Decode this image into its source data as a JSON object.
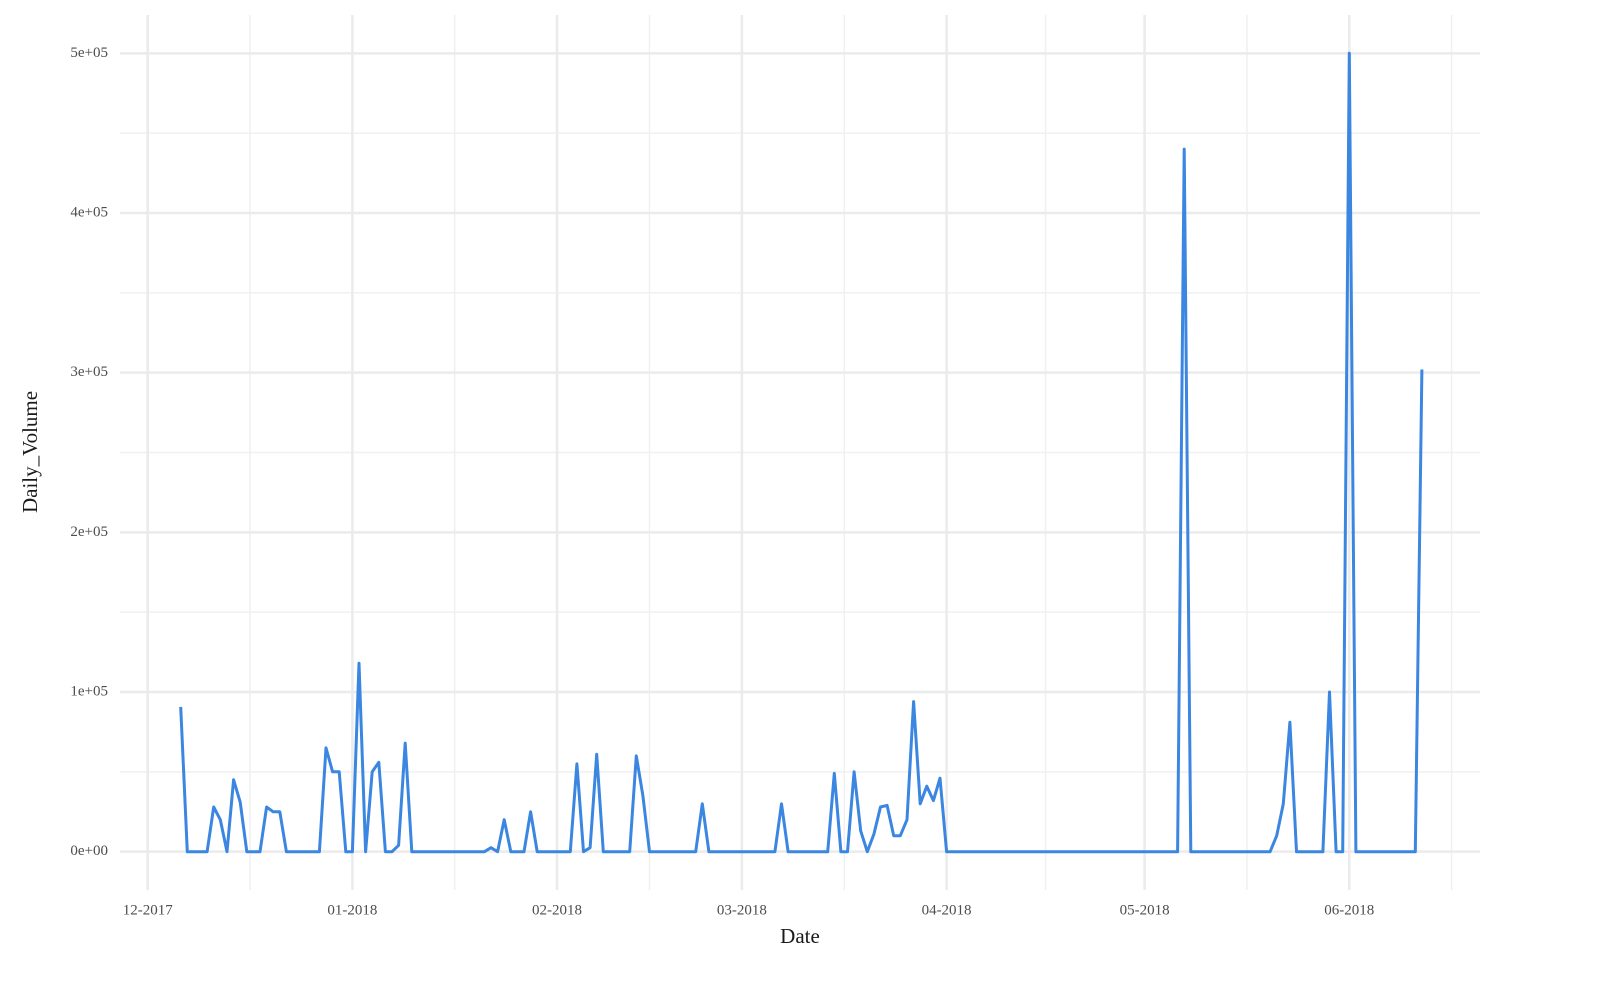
{
  "chart_data": {
    "type": "line",
    "x_label": "Date",
    "y_label": "Daily_Volume",
    "color": "#3a86e0",
    "grid": true,
    "xlim": [
      -4.2,
      201.8
    ],
    "xticks": [
      {
        "value": 0,
        "label": "12-2017"
      },
      {
        "value": 31,
        "label": "01-2018"
      },
      {
        "value": 62,
        "label": "02-2018"
      },
      {
        "value": 90,
        "label": "03-2018"
      },
      {
        "value": 121,
        "label": "04-2018"
      },
      {
        "value": 151,
        "label": "05-2018"
      },
      {
        "value": 182,
        "label": "06-2018"
      }
    ],
    "xminorticks": [
      15.5,
      46.5,
      76,
      105.5,
      136,
      166.5,
      197.5
    ],
    "ylim": [
      -24000,
      524000
    ],
    "yticks": [
      {
        "value": 0,
        "label": "0e+00"
      },
      {
        "value": 100000,
        "label": "1e+05"
      },
      {
        "value": 200000,
        "label": "2e+05"
      },
      {
        "value": 300000,
        "label": "3e+05"
      },
      {
        "value": 400000,
        "label": "4e+05"
      },
      {
        "value": 500000,
        "label": "5e+05"
      }
    ],
    "yminorticks": [
      50000,
      150000,
      250000,
      350000,
      450000
    ],
    "series": [
      {
        "name": "Daily_Volume",
        "color": "#3a86e0",
        "x": [
          5,
          6,
          9,
          10,
          11,
          12,
          13,
          14,
          15,
          17,
          18,
          19,
          20,
          21,
          26,
          27,
          28,
          29,
          30,
          31,
          32,
          33,
          34,
          35,
          36,
          37,
          38,
          39,
          40,
          51,
          52,
          53,
          54,
          55,
          57,
          58,
          59,
          64,
          65,
          66,
          67,
          68,
          69,
          73,
          74,
          75,
          76,
          83,
          84,
          85,
          95,
          96,
          97,
          103,
          104,
          105,
          106,
          107,
          108,
          109,
          110,
          111,
          112,
          113,
          114,
          115,
          116,
          117,
          118,
          119,
          120,
          121,
          156,
          157,
          158,
          170,
          171,
          172,
          173,
          174,
          178,
          179,
          180,
          181,
          182,
          183,
          192,
          193
        ],
        "values": [
          90700,
          0,
          0,
          28000,
          20000,
          0,
          45000,
          31000,
          0,
          0,
          28000,
          25000,
          25000,
          0,
          0,
          65000,
          50000,
          50000,
          0,
          0,
          118000,
          0,
          50000,
          56000,
          0,
          0,
          4000,
          68000,
          0,
          0,
          2500,
          0,
          20000,
          0,
          0,
          25000,
          0,
          0,
          55000,
          0,
          2500,
          61000,
          0,
          0,
          60000,
          35000,
          0,
          0,
          30000,
          0,
          0,
          30000,
          0,
          0,
          49000,
          0,
          0,
          50000,
          13000,
          0,
          11000,
          28000,
          29000,
          10000,
          10000,
          20000,
          94000,
          30000,
          41000,
          32000,
          46000,
          0,
          0,
          440000,
          0,
          0,
          10000,
          30000,
          81000,
          0,
          0,
          100000,
          0,
          0,
          500000,
          0,
          0,
          302000
        ]
      }
    ]
  }
}
